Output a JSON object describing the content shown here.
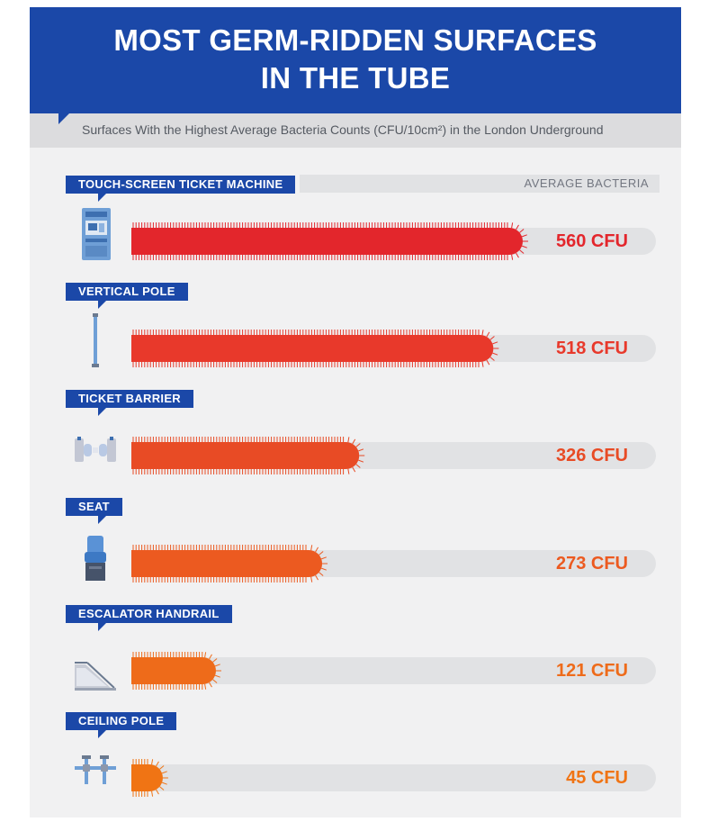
{
  "title": {
    "line1_prefix": "MOST ",
    "line1_bold": "GERM-RIDDEN",
    "line1_suffix": " SURFACES",
    "line2": "IN THE TUBE"
  },
  "subtitle": "Surfaces With the Highest Average Bacteria Counts (CFU/10cm²) in the London Underground",
  "column_header": "AVERAGE BACTERIA",
  "colors": {
    "header_blue": "#1b48a8",
    "bar_colors": [
      "#e3262c",
      "#e8392b",
      "#e84b25",
      "#ec5a20",
      "#ee6b1a",
      "#f07414"
    ]
  },
  "chart_data": {
    "type": "bar",
    "orientation": "horizontal",
    "categories": [
      "TOUCH-SCREEN TICKET MACHINE",
      "VERTICAL POLE",
      "TICKET BARRIER",
      "SEAT",
      "ESCALATOR HANDRAIL",
      "CEILING POLE"
    ],
    "values": [
      560,
      518,
      326,
      273,
      121,
      45
    ],
    "value_labels": [
      "560 CFU",
      "518 CFU",
      "326 CFU",
      "273 CFU",
      "121 CFU",
      "45 CFU"
    ],
    "unit": "CFU",
    "xlim": [
      0,
      560
    ],
    "icons": [
      "ticket-machine-icon",
      "vertical-pole-icon",
      "ticket-barrier-icon",
      "seat-icon",
      "escalator-icon",
      "ceiling-pole-icon"
    ]
  }
}
